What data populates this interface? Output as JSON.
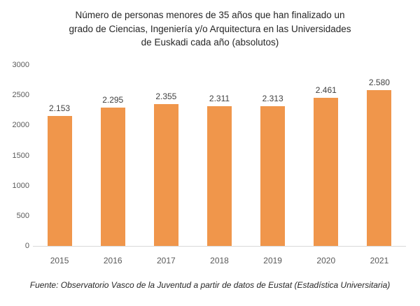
{
  "header": {
    "lines": [
      "Número de personas menores de 35 años que han finalizado un",
      "grado de Ciencias, Ingeniería y/o Arquitectura  en las Universidades",
      "de Euskadi cada año (absolutos)"
    ]
  },
  "chart_data": {
    "type": "bar",
    "title": "Número de personas menores de 35 años que han finalizado un grado de Ciencias, Ingeniería y/o Arquitectura  en las Universidades de Euskadi cada año (absolutos)",
    "categories": [
      "2015",
      "2016",
      "2017",
      "2018",
      "2019",
      "2020",
      "2021"
    ],
    "values": [
      2153,
      2295,
      2355,
      2311,
      2313,
      2461,
      2580
    ],
    "value_labels": [
      "2.153",
      "2.295",
      "2.355",
      "2.311",
      "2.313",
      "2.461",
      "2.580"
    ],
    "xlabel": "",
    "ylabel": "",
    "ylim": [
      0,
      3000
    ],
    "yticks": [
      0,
      500,
      1000,
      1500,
      2000,
      2500,
      3000
    ],
    "grid": false,
    "legend": "none",
    "colors": {
      "bar": "#F0964B",
      "axis_line": "#D9D9D9",
      "tick_label": "#595959",
      "data_label": "#404040",
      "title_text": "#262626"
    }
  },
  "footer": {
    "source": "Fuente: Observatorio Vasco de la Juventud a partir de datos de Eustat (Estadística Universitaria)"
  }
}
